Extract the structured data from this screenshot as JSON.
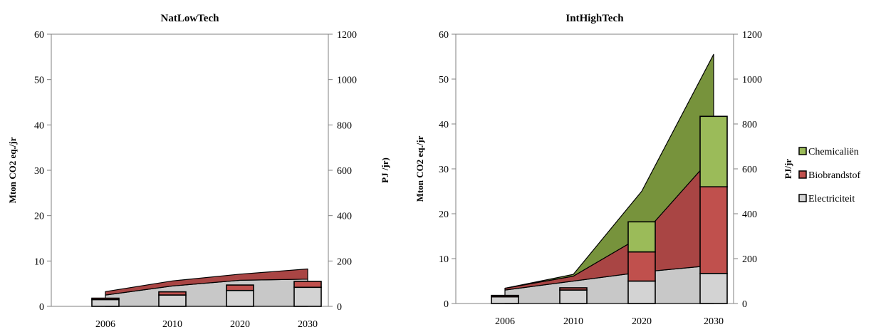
{
  "chart_data": [
    {
      "type": "bar",
      "title": "NatLowTech",
      "categories": [
        "2006",
        "2010",
        "2020",
        "2030"
      ],
      "ylabel": "Mton CO2 eq./jr",
      "ylim": [
        0,
        60
      ],
      "yticks": [
        "0",
        "10",
        "20",
        "30",
        "40",
        "50",
        "60"
      ],
      "y2label": "PJ /jr)",
      "y2lim": [
        0,
        1200
      ],
      "y2ticks": [
        "0",
        "200",
        "400",
        "600",
        "800",
        "1000",
        "1200"
      ],
      "series": [
        {
          "name": "Electriciteit",
          "values": [
            1.5,
            2.5,
            3.5,
            4.2
          ]
        },
        {
          "name": "Biobrandstof",
          "values": [
            0.3,
            0.7,
            1.2,
            1.3
          ]
        },
        {
          "name": "Chemicaliën",
          "values": [
            0,
            0,
            0,
            0
          ]
        }
      ],
      "area_series": [
        {
          "name": "Electriciteit",
          "values": [
            50,
            90,
            115,
            120
          ]
        },
        {
          "name": "Biobrandstof",
          "values": [
            15,
            22,
            27,
            45
          ]
        },
        {
          "name": "Chemicaliën",
          "values": [
            0,
            0,
            0,
            0
          ]
        }
      ],
      "grid": false
    },
    {
      "type": "bar",
      "title": "IntHighTech",
      "categories": [
        "2006",
        "2010",
        "2020",
        "2030"
      ],
      "ylabel": "Mton CO2 eq./jr",
      "ylim": [
        0,
        60
      ],
      "yticks": [
        "0",
        "10",
        "20",
        "30",
        "40",
        "50",
        "60"
      ],
      "y2label": "PJ/jr",
      "y2lim": [
        0,
        1200
      ],
      "y2ticks": [
        "0",
        "200",
        "400",
        "600",
        "800",
        "1000",
        "1200"
      ],
      "series": [
        {
          "name": "Electriciteit",
          "values": [
            1.5,
            3.0,
            5.0,
            6.7
          ]
        },
        {
          "name": "Biobrandstof",
          "values": [
            0.3,
            0.5,
            6.5,
            19.3
          ]
        },
        {
          "name": "Chemicaliën",
          "values": [
            0,
            0,
            6.7,
            15.7
          ]
        }
      ],
      "area_series": [
        {
          "name": "Electriciteit",
          "values": [
            60,
            100,
            140,
            170
          ]
        },
        {
          "name": "Biobrandstof",
          "values": [
            8,
            22,
            160,
            490
          ]
        },
        {
          "name": "Chemicaliën",
          "values": [
            0,
            8,
            200,
            450
          ]
        }
      ],
      "grid": false
    }
  ],
  "legend": [
    {
      "name": "Chemicaliën",
      "color": "#9BBB59"
    },
    {
      "name": "Biobrandstof",
      "color": "#C0504D"
    },
    {
      "name": "Electriciteit",
      "color": "#D3D3D3"
    }
  ],
  "colors": {
    "bar_electriciteit": "#D3D3D3",
    "bar_biobrandstof": "#C0504D",
    "bar_chemicalien": "#9BBB59",
    "area_electriciteit": "#C8C8C8",
    "area_biobrandstof": "#A94544",
    "area_chemicalien": "#77933C",
    "axis": "#808080"
  }
}
